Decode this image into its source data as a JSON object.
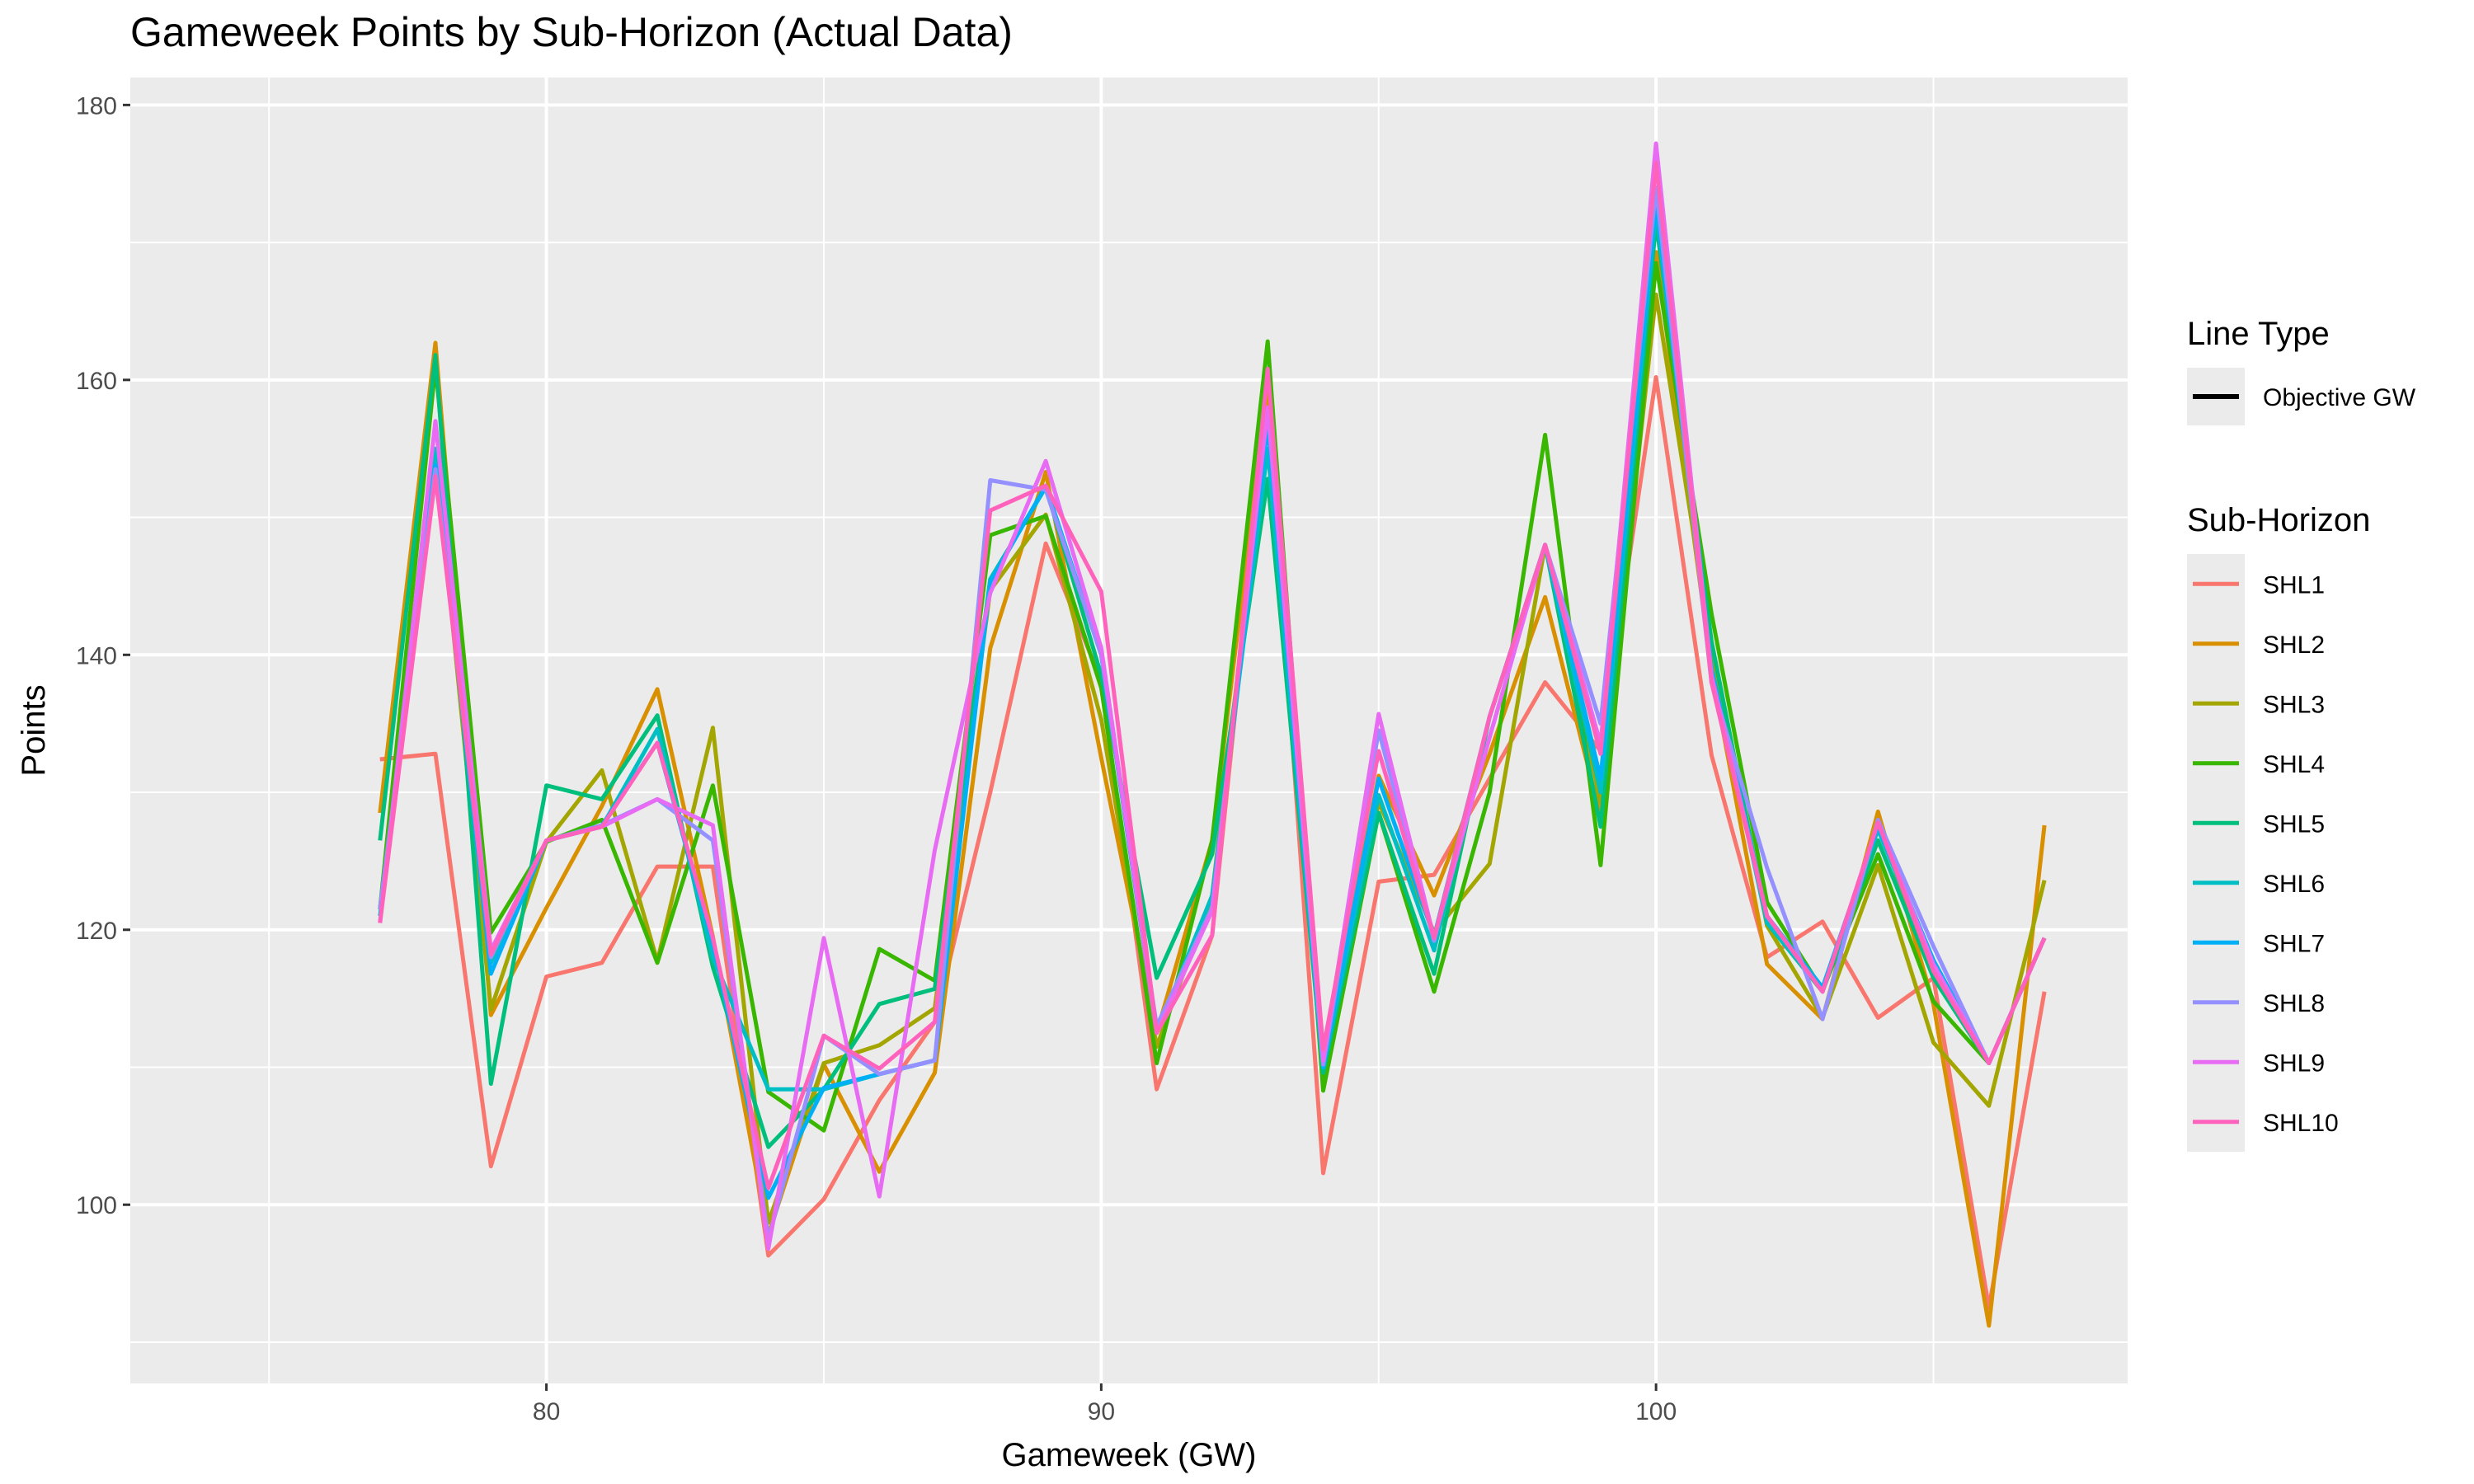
{
  "title": "Gameweek Points by Sub-Horizon (Actual Data)",
  "chart_data": {
    "type": "line",
    "title": "Gameweek Points by Sub-Horizon (Actual Data)",
    "xlabel": "Gameweek (GW)",
    "ylabel": "Points",
    "xlim": [
      72.5,
      108.5
    ],
    "ylim": [
      87,
      182
    ],
    "x_ticks": [
      80,
      90,
      100
    ],
    "y_ticks": [
      100,
      120,
      140,
      160,
      180
    ],
    "grid": true,
    "legend_position": "right",
    "line_type_legend": {
      "title": "Line Type",
      "entries": [
        "Objective GW"
      ]
    },
    "series_legend_title": "Sub-Horizon",
    "x": [
      77,
      78,
      79,
      80,
      81,
      82,
      83,
      84,
      85,
      86,
      87,
      88,
      89,
      90,
      91,
      92,
      93,
      94,
      95,
      96,
      97,
      98,
      99,
      100,
      101,
      102,
      103,
      104,
      105,
      106,
      107
    ],
    "series": [
      {
        "name": "SHL1",
        "color": "#F8766D",
        "values": [
          132.4,
          132.8,
          102.8,
          116.6,
          117.6,
          124.6,
          124.6,
          96.3,
          100.4,
          107.6,
          113.3,
          130,
          148.1,
          138.1,
          108.4,
          119.6,
          158.7,
          102.3,
          123.5,
          124,
          131,
          138,
          133,
          160.2,
          132.7,
          118,
          120.6,
          113.6,
          116.5,
          92.5,
          115.5
        ]
      },
      {
        "name": "SHL2",
        "color": "#D89000",
        "values": [
          128.5,
          162.7,
          113.8,
          121.6,
          129,
          137.5,
          119.5,
          97.8,
          110.2,
          102.4,
          109.6,
          140.5,
          153.3,
          132.5,
          112.5,
          126.5,
          159.6,
          110.5,
          131.2,
          122.5,
          132.8,
          144.2,
          128.3,
          169.3,
          138.9,
          117.5,
          113.5,
          128.6,
          114.6,
          91.2,
          127.6
        ]
      },
      {
        "name": "SHL3",
        "color": "#A3A500",
        "values": [
          121.5,
          154.8,
          114.2,
          126.4,
          131.6,
          117.7,
          134.7,
          98.7,
          110.3,
          111.6,
          114.3,
          144.7,
          150.2,
          135.3,
          111.5,
          122.5,
          157.5,
          109.5,
          129.3,
          119.8,
          124.8,
          148,
          129.3,
          166.2,
          140.5,
          120.3,
          113.6,
          124.7,
          111.8,
          107.2,
          123.6
        ]
      },
      {
        "name": "SHL4",
        "color": "#39B600",
        "values": [
          121.5,
          161,
          119.8,
          126.4,
          128,
          117.6,
          130.5,
          108.2,
          105.4,
          118.6,
          116.3,
          148.7,
          150.1,
          137.6,
          110.3,
          126.5,
          162.8,
          108.3,
          128.5,
          115.5,
          130,
          156,
          124.7,
          168.5,
          143,
          122,
          115.6,
          125.5,
          114.8,
          110.3,
          119.4
        ]
      },
      {
        "name": "SHL5",
        "color": "#00BF7D",
        "values": [
          126.5,
          161.8,
          108.8,
          130.5,
          129.5,
          135.6,
          117.3,
          104.2,
          108.4,
          114.6,
          115.7,
          145.5,
          152.2,
          138.5,
          116.5,
          125.5,
          152.8,
          109.6,
          128.5,
          116.8,
          135.5,
          148,
          127.5,
          171.5,
          141,
          120.5,
          115.5,
          126.5,
          116.5,
          110.3,
          119.4
        ]
      },
      {
        "name": "SHL6",
        "color": "#00BFC4",
        "values": [
          121,
          155,
          117.6,
          126.5,
          127.5,
          134.6,
          118,
          108.4,
          108.4,
          109.5,
          110.5,
          145.5,
          152.2,
          140,
          112.5,
          122.5,
          155,
          110,
          129.8,
          118.5,
          135.5,
          148,
          130,
          172.5,
          139,
          120.5,
          115.6,
          127.3,
          117.5,
          110.3,
          119.4
        ]
      },
      {
        "name": "SHL7",
        "color": "#00B0F6",
        "values": [
          121.5,
          153.8,
          116.8,
          126.5,
          127.6,
          133.6,
          119,
          100.5,
          108.5,
          109.5,
          110.5,
          145.3,
          152.3,
          140,
          112.6,
          121.5,
          156.8,
          110,
          131,
          119.5,
          135.5,
          148,
          131,
          173,
          139,
          121,
          115.8,
          127.5,
          117.8,
          110.3,
          119.4
        ]
      },
      {
        "name": "SHL8",
        "color": "#9590FF",
        "values": [
          121.5,
          153.5,
          118,
          126.5,
          127.6,
          129.5,
          126.5,
          97.5,
          112.3,
          109.5,
          110.5,
          152.7,
          152,
          140,
          113,
          121.6,
          158,
          110.2,
          134.5,
          119.2,
          135.5,
          148,
          135,
          174,
          138,
          124.5,
          113.5,
          128,
          118.8,
          110.3,
          119.4
        ]
      },
      {
        "name": "SHL9",
        "color": "#E76BF3",
        "values": [
          120.5,
          157,
          118.5,
          126.5,
          127.5,
          129.5,
          127.6,
          96.8,
          119.4,
          100.6,
          125.8,
          144.5,
          154.1,
          140.5,
          112.5,
          121.4,
          158,
          110.5,
          135.7,
          119.4,
          134,
          148,
          133.5,
          177.2,
          138.5,
          121,
          115.5,
          127.8,
          117.5,
          110.3,
          119.4
        ]
      },
      {
        "name": "SHL10",
        "color": "#FF62BC",
        "values": [
          120.5,
          153,
          118.2,
          126.5,
          127.5,
          133.6,
          119.4,
          101.2,
          112.3,
          109.9,
          113.3,
          150.5,
          152.3,
          144.6,
          112.5,
          119.6,
          160.8,
          111.3,
          133,
          119.4,
          135.5,
          148,
          132.8,
          175.8,
          138,
          121,
          115.5,
          127.8,
          117,
          110.3,
          119.4
        ]
      }
    ]
  }
}
